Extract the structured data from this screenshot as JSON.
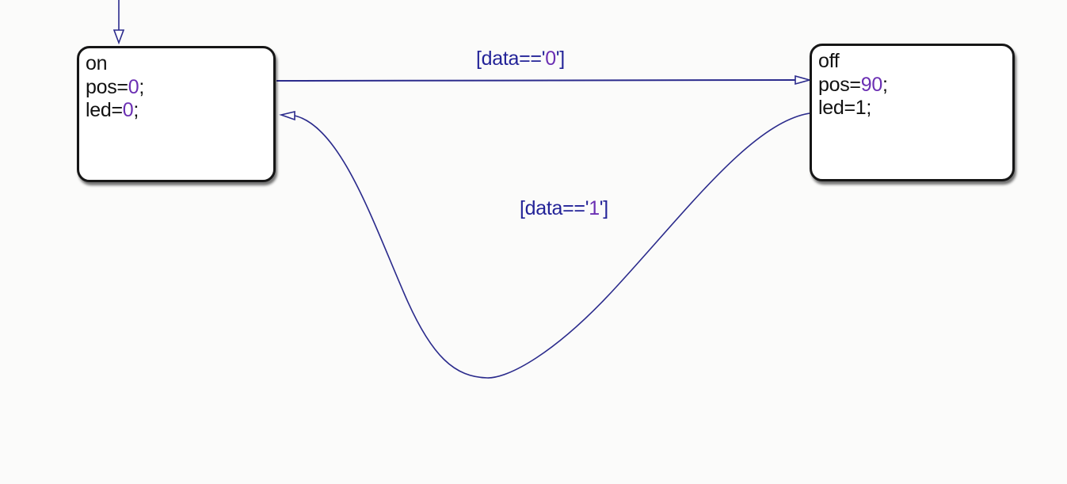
{
  "colors": {
    "transition": "#2b2b8c",
    "label": "#232398",
    "value": "#6b2fb3",
    "text": "#111111"
  },
  "states": {
    "on": {
      "name": "on",
      "actions": [
        {
          "var": "pos",
          "value": "0"
        },
        {
          "var": "led",
          "value": "0"
        }
      ]
    },
    "off": {
      "name": "off",
      "actions": [
        {
          "var": "pos",
          "value": "90"
        },
        {
          "var": "led",
          "value": "1"
        }
      ]
    }
  },
  "transitions": {
    "on_to_off": {
      "label_prefix": "[data=='",
      "label_value": "0",
      "label_suffix": "']"
    },
    "off_to_on": {
      "label_prefix": "[data=='",
      "label_value": "1",
      "label_suffix": "']"
    }
  }
}
